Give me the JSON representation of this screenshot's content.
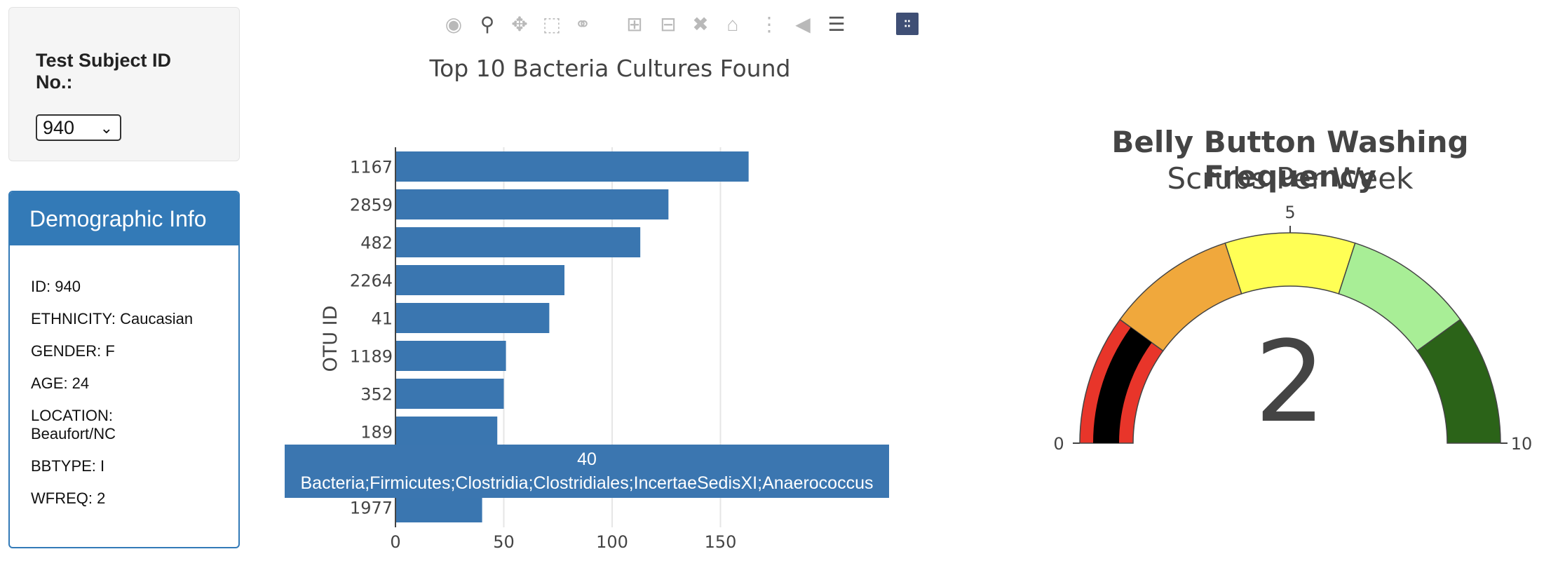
{
  "selector": {
    "label": "Test Subject ID No.:",
    "value": "940"
  },
  "demographics": {
    "heading": "Demographic Info",
    "rows": [
      "ID: 940",
      "ETHNICITY: Caucasian",
      "GENDER: F",
      "AGE: 24",
      "LOCATION: Beaufort/NC",
      "BBTYPE: I",
      "WFREQ: 2"
    ]
  },
  "modebar": {
    "icons": [
      "camera-icon",
      "zoom-icon",
      "pan-icon",
      "box-select-icon",
      "lasso-select-icon",
      "zoom-in-icon",
      "zoom-out-icon",
      "autoscale-icon",
      "reset-axes-icon",
      "spike-lines-icon",
      "hover-closest-icon",
      "hover-compare-icon",
      "plotly-logo-icon"
    ]
  },
  "hover": {
    "value": "40",
    "text": "Bacteria;Firmicutes;Clostridia;Clostridiales;IncertaeSedisXI;Anaerococcus"
  },
  "chart_data": [
    {
      "type": "bar",
      "orientation": "horizontal",
      "title": "Top 10 Bacteria Cultures Found",
      "ylabel": "OTU ID",
      "xlabel": "",
      "categories": [
        "1167",
        "2859",
        "482",
        "2264",
        "41",
        "1189",
        "352",
        "189",
        "40",
        "1977"
      ],
      "values": [
        163,
        126,
        113,
        78,
        71,
        51,
        50,
        47,
        40,
        40
      ],
      "xlim": [
        0,
        200
      ],
      "xticks": [
        0,
        50,
        100,
        150
      ],
      "grid": true,
      "color": "#3a76b0"
    },
    {
      "type": "gauge",
      "title": "Belly Button Washing Frequency",
      "subtitle": "Scrubs Per Week",
      "value": 2,
      "range": [
        0,
        10
      ],
      "ticks": [
        0,
        5,
        10
      ],
      "steps": [
        {
          "range": [
            0,
            2
          ],
          "color": "#e8352a"
        },
        {
          "range": [
            2,
            4
          ],
          "color": "#f0a83c"
        },
        {
          "range": [
            4,
            6
          ],
          "color": "#ffff55"
        },
        {
          "range": [
            6,
            8
          ],
          "color": "#a8ee96"
        },
        {
          "range": [
            8,
            10
          ],
          "color": "#2b6318"
        }
      ],
      "bar_color": "#000000"
    }
  ]
}
